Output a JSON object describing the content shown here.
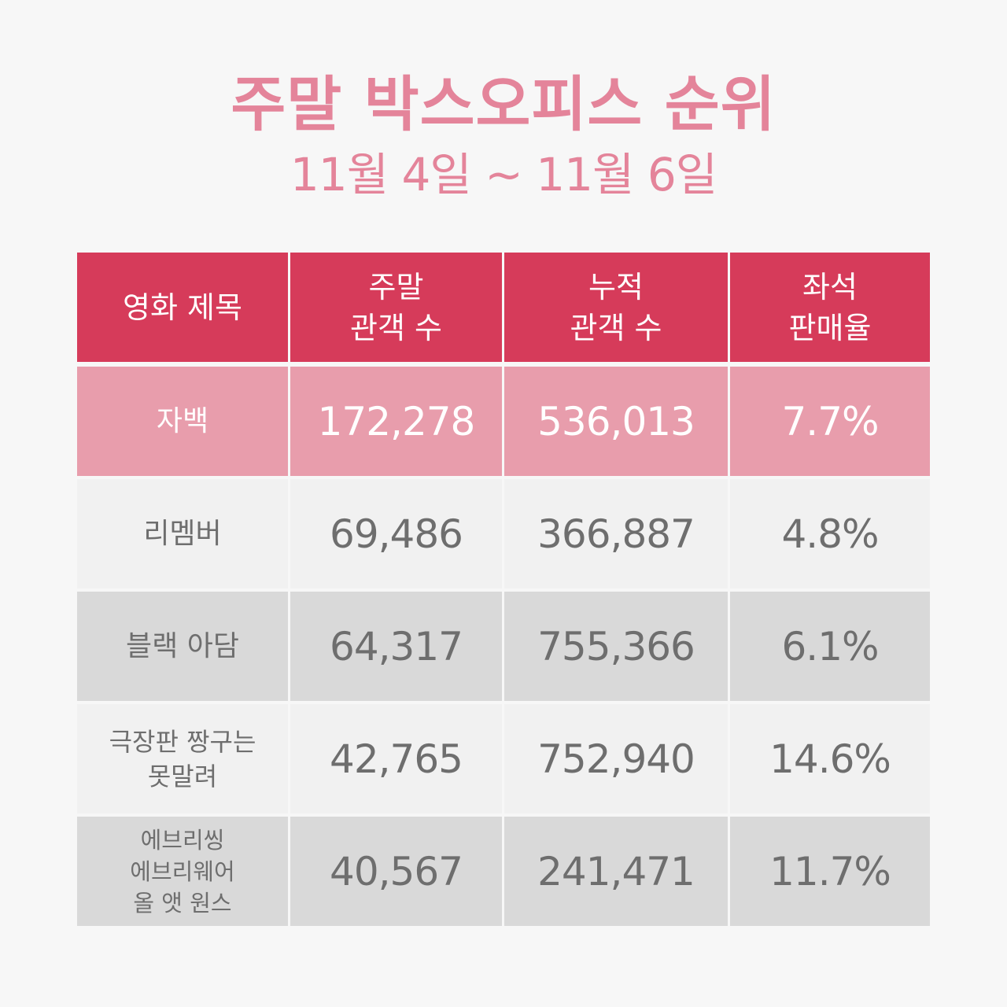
{
  "header": {
    "title": "주말 박스오피스 순위",
    "subtitle": "11월 4일 ~ 11월 6일"
  },
  "table": {
    "columns": [
      "영화 제목",
      "주말\n관객 수",
      "누적\n관객 수",
      "좌석\n판매율"
    ],
    "rows": [
      {
        "title": "자백",
        "weekend": "172,278",
        "cumulative": "536,013",
        "seat_rate": "7.7%"
      },
      {
        "title": "리멤버",
        "weekend": "69,486",
        "cumulative": "366,887",
        "seat_rate": "4.8%"
      },
      {
        "title": "블랙 아담",
        "weekend": "64,317",
        "cumulative": "755,366",
        "seat_rate": "6.1%"
      },
      {
        "title": "극장판 짱구는\n못말려",
        "weekend": "42,765",
        "cumulative": "752,940",
        "seat_rate": "14.6%"
      },
      {
        "title": "에브리씽\n에브리웨어\n올 앳 원스",
        "weekend": "40,567",
        "cumulative": "241,471",
        "seat_rate": "11.7%"
      }
    ]
  },
  "colors": {
    "title": "#e4849a",
    "header_bg": "#d63b5a",
    "highlight_bg": "#e89dac",
    "row_light_bg": "#f1f1f1",
    "row_dark_bg": "#d9d9d9",
    "text_gray": "#6e6e6e",
    "background": "#f7f7f7"
  }
}
